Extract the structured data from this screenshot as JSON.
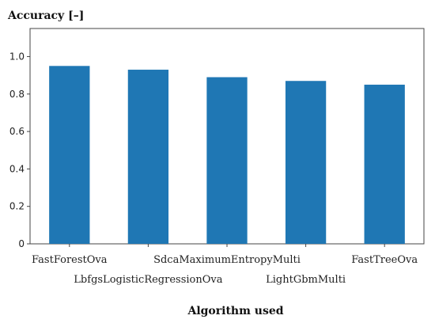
{
  "chart_data": {
    "type": "bar",
    "title": "",
    "ylabel": "Accuracy [–]",
    "xlabel": "Algorithm used",
    "categories": [
      "FastForestOva",
      "LbfgsLogisticRegressionOva",
      "SdcaMaximumEntropyMulti",
      "LightGbmMulti",
      "FastTreeOva"
    ],
    "values": [
      0.95,
      0.93,
      0.89,
      0.87,
      0.85
    ],
    "ylim": [
      0,
      1.15
    ],
    "yticks": [
      0,
      0.2,
      0.4,
      0.6,
      0.8,
      1.0
    ],
    "ytick_labels": [
      "0",
      "0.2",
      "0.4",
      "0.6",
      "0.8",
      "1.0"
    ],
    "bar_color": "#1f77b4",
    "grid": false,
    "legend": "none"
  }
}
